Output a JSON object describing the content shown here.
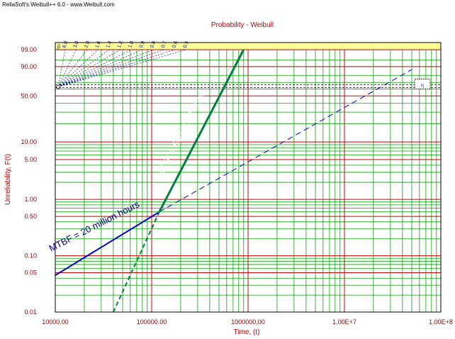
{
  "header": {
    "watermark": "ReliaSoft's Weibull++ 6.0 - www.Weibull.com"
  },
  "chart_data": {
    "type": "line",
    "title": "Probability - Weibull",
    "xlabel": "Time, (t)",
    "ylabel": "Unreliability, F(t)",
    "x_scale": "log",
    "y_scale": "weibull",
    "xlim": [
      10000,
      100000000
    ],
    "ylim": [
      0.01,
      99.0
    ],
    "x_tick_labels": [
      "10000.00",
      "100000.00",
      "1000000.00",
      "1.00E+7",
      "1.00E+8"
    ],
    "x_tick_values": [
      10000,
      100000,
      1000000,
      10000000,
      100000000
    ],
    "y_tick_labels": [
      "99.00",
      "90.00",
      "50.00",
      "10.00",
      "5.00",
      "1.00",
      "0.50",
      "0.10",
      "0.05",
      "0.01"
    ],
    "y_tick_values": [
      99,
      90,
      50,
      10,
      5,
      1,
      0.5,
      0.1,
      0.05,
      0.01
    ],
    "beta_scale": {
      "symbol": "β",
      "labels": [
        "6.0",
        "3.0",
        "2.0",
        "1.6",
        "1.4",
        "1.2",
        "1.0",
        "0.9",
        "0.8",
        "0.7",
        "0.6",
        "0.5"
      ],
      "values": [
        6.0,
        3.0,
        2.0,
        1.6,
        1.4,
        1.2,
        1.0,
        0.9,
        0.8,
        0.7,
        0.6,
        0.5
      ]
    },
    "eta_label": "η",
    "series": [
      {
        "name": "MTBF = 20 million hours",
        "color": "#0000cc",
        "dashed_extension": true,
        "x": [
          10000,
          120000,
          50000000
        ],
        "y": [
          0.045,
          0.6,
          87
        ]
      },
      {
        "name": "MTTF = 500,000 hours",
        "color": "#008040",
        "dashed_extension": true,
        "x": [
          40000,
          120000,
          900000
        ],
        "y": [
          0.01,
          0.6,
          99
        ]
      }
    ],
    "annotations": [
      {
        "text": "MTBF = 20 million hours",
        "color": "#000080"
      },
      {
        "text": "MTTF = 500,000 hours",
        "color": "#ffffff"
      }
    ],
    "colors": {
      "plot_background": "#00aa00",
      "major_grid": "#cc0000",
      "minor_grid": "#00a000",
      "frame": "#000000",
      "header_band": "#ffff99"
    }
  }
}
